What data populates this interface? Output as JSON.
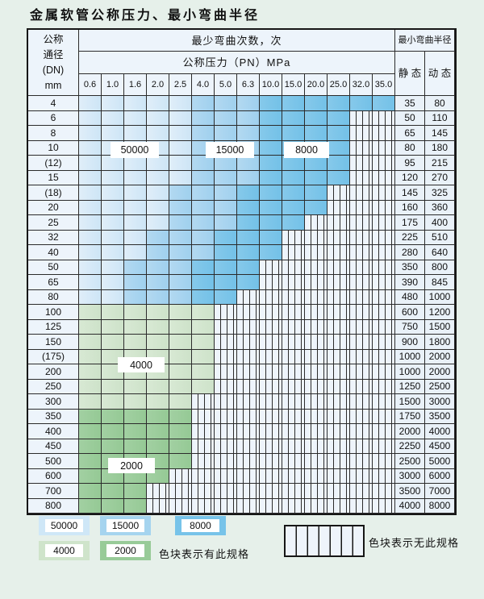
{
  "title": "金属软管公称压力、最小弯曲半径",
  "table": {
    "corner_header": "公称\n通径\n(DN)\nmm",
    "bend_cycles_header": "最少弯曲次数，次",
    "pressure_header": "公称压力（PN）MPa",
    "pressure_columns": [
      "0.6",
      "1.0",
      "1.6",
      "2.0",
      "2.5",
      "4.0",
      "5.0",
      "6.3",
      "10.0",
      "15.0",
      "20.0",
      "25.0",
      "32.0",
      "35.0"
    ],
    "radius_header": "最小弯曲半径",
    "static_header": "静 态",
    "dynamic_header": "动 态",
    "cell_legend": "L=50000 cycles (light blue), M=15000 (medium blue), D=8000 (dark blue), G=4000 (light green), g=2000 (medium green), H=no such specification (hatched)",
    "rows": [
      {
        "dn": "4",
        "cells": "LLLLLMMMDDDDDD",
        "static": "35",
        "dynamic": "80"
      },
      {
        "dn": "6",
        "cells": "LLLLLMMMDDDDHH",
        "static": "50",
        "dynamic": "110"
      },
      {
        "dn": "8",
        "cells": "LLLLLMMMDDDDHH",
        "static": "65",
        "dynamic": "145"
      },
      {
        "dn": "10",
        "cells": "LLLLLMMMDDDDHH",
        "static": "80",
        "dynamic": "180"
      },
      {
        "dn": "(12)",
        "cells": "LLLLLMMMDDDDHH",
        "static": "95",
        "dynamic": "215"
      },
      {
        "dn": "15",
        "cells": "LLLLLMMMDDDDHH",
        "static": "120",
        "dynamic": "270"
      },
      {
        "dn": "(18)",
        "cells": "LLLLMMMDDDDHHH",
        "static": "145",
        "dynamic": "325"
      },
      {
        "dn": "20",
        "cells": "LLLLMMMDDDDHHH",
        "static": "160",
        "dynamic": "360"
      },
      {
        "dn": "25",
        "cells": "LLLLMMMDDDHHHH",
        "static": "175",
        "dynamic": "400"
      },
      {
        "dn": "32",
        "cells": "LLLMMMDDDHHHHH",
        "static": "225",
        "dynamic": "510"
      },
      {
        "dn": "40",
        "cells": "LLLMMMDDDHHHHH",
        "static": "280",
        "dynamic": "640"
      },
      {
        "dn": "50",
        "cells": "LLMMMDDDHHHHHH",
        "static": "350",
        "dynamic": "800"
      },
      {
        "dn": "65",
        "cells": "LLMMMDDDHHHHHH",
        "static": "390",
        "dynamic": "845"
      },
      {
        "dn": "80",
        "cells": "LLMMMDDHHHHHHH",
        "static": "480",
        "dynamic": "1000"
      },
      {
        "dn": "100",
        "cells": "GGGGGGHHHHHHHH",
        "static": "600",
        "dynamic": "1200"
      },
      {
        "dn": "125",
        "cells": "GGGGGGHHHHHHHH",
        "static": "750",
        "dynamic": "1500"
      },
      {
        "dn": "150",
        "cells": "GGGGGGHHHHHHHH",
        "static": "900",
        "dynamic": "1800"
      },
      {
        "dn": "(175)",
        "cells": "GGGGGGHHHHHHHH",
        "static": "1000",
        "dynamic": "2000"
      },
      {
        "dn": "200",
        "cells": "GGGGGGHHHHHHHH",
        "static": "1000",
        "dynamic": "2000"
      },
      {
        "dn": "250",
        "cells": "GGGGGGHHHHHHHH",
        "static": "1250",
        "dynamic": "2500"
      },
      {
        "dn": "300",
        "cells": "GGGGGHHHHHHHHH",
        "static": "1500",
        "dynamic": "3000"
      },
      {
        "dn": "350",
        "cells": "gggggHHHHHHHHH",
        "static": "1750",
        "dynamic": "3500"
      },
      {
        "dn": "400",
        "cells": "gggggHHHHHHHHH",
        "static": "2000",
        "dynamic": "4000"
      },
      {
        "dn": "450",
        "cells": "gggggHHHHHHHHH",
        "static": "2250",
        "dynamic": "4500"
      },
      {
        "dn": "500",
        "cells": "gggggHHHHHHHHH",
        "static": "2500",
        "dynamic": "5000"
      },
      {
        "dn": "600",
        "cells": "ggggHHHHHHHHHH",
        "static": "3000",
        "dynamic": "6000"
      },
      {
        "dn": "700",
        "cells": "gggHHHHHHHHHHH",
        "static": "3500",
        "dynamic": "7000"
      },
      {
        "dn": "800",
        "cells": "gggHHHHHHHHHHH",
        "static": "4000",
        "dynamic": "8000"
      }
    ]
  },
  "overlays": [
    "50000",
    "15000",
    "8000",
    "4000",
    "2000"
  ],
  "legend": {
    "items": [
      {
        "value": "50000",
        "color": "#cfe7f7"
      },
      {
        "value": "15000",
        "color": "#a5d4ef"
      },
      {
        "value": "8000",
        "color": "#77c3e9"
      },
      {
        "value": "4000",
        "color": "#cfe4cb"
      },
      {
        "value": "2000",
        "color": "#98cb98"
      }
    ],
    "present_label": "色块表示有此规格",
    "absent_label": "色块表示无此规格"
  },
  "colors": {
    "light_blue": "#cfe7f7",
    "medium_blue": "#a5d4ef",
    "dark_blue": "#77c3e9",
    "light_green": "#cfe4cb",
    "medium_green": "#98cb98",
    "grid_line": "#2b2b2b",
    "page_background": "#e6f0ea"
  }
}
